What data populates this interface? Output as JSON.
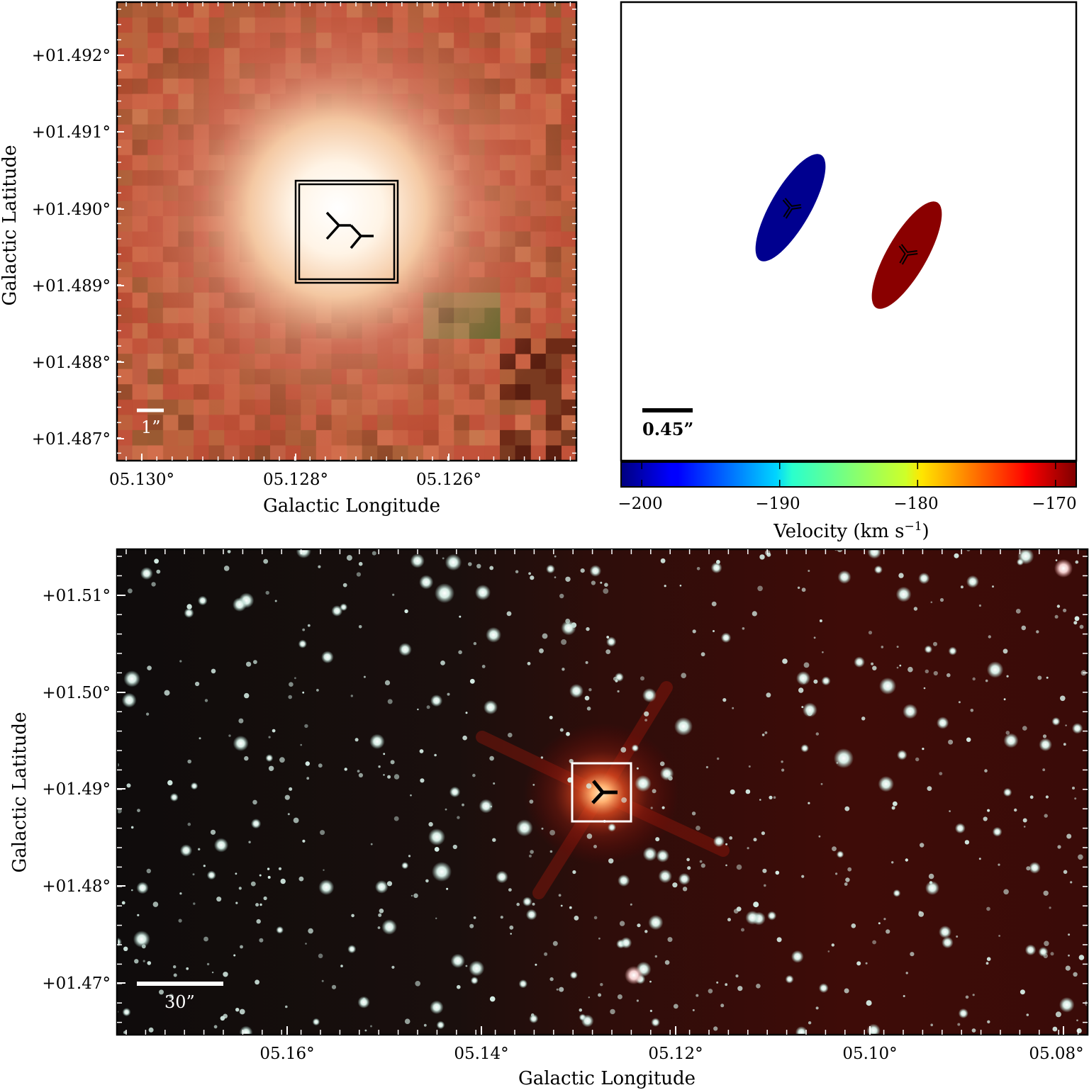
{
  "panel_top_left": {
    "colors": {
      "base": "#c4583a",
      "glow": "#fff6e6",
      "frame": "#000000"
    },
    "y_ticks": [
      "+01.492°",
      "+01.491°",
      "+01.490°",
      "+01.489°",
      "+01.488°",
      "+01.487°"
    ],
    "x_ticks": [
      "05.130°",
      "05.128°",
      "05.126°"
    ],
    "ylabel": "Galactic Latitude",
    "xlabel": "Galactic Longitude",
    "scale_bar_label": "1”",
    "source_marker_icon": "tri-marker-icon"
  },
  "panel_top_right": {
    "scale_bar_label": "0.45”",
    "colorbar": {
      "colormap": "jet",
      "ticks": [
        "−200",
        "−190",
        "−180",
        "−170"
      ],
      "tick_values": [
        -200,
        -190,
        -180,
        -170
      ],
      "range": [
        -201.5,
        -168.5
      ],
      "label": "Velocity (km s",
      "label_sup": "−1",
      "label_end": ")"
    },
    "components": [
      {
        "color": "#00008f",
        "velocity_kms": -200
      },
      {
        "color": "#8a0000",
        "velocity_kms": -168
      }
    ],
    "marker_icon": "tri-marker-icon"
  },
  "panel_bottom": {
    "colors": {
      "background_left": "#110d0c",
      "background_right": "#3e0c08",
      "stars": "#e6f4ee"
    },
    "y_ticks": [
      "+01.51°",
      "+01.50°",
      "+01.49°",
      "+01.48°",
      "+01.47°"
    ],
    "x_ticks": [
      "05.16°",
      "05.14°",
      "05.12°",
      "05.10°",
      "05.08°"
    ],
    "ylabel": "Galactic Latitude",
    "xlabel": "Galactic Longitude",
    "scale_bar_label": "30”",
    "source_marker_icon": "tri-marker-icon"
  }
}
